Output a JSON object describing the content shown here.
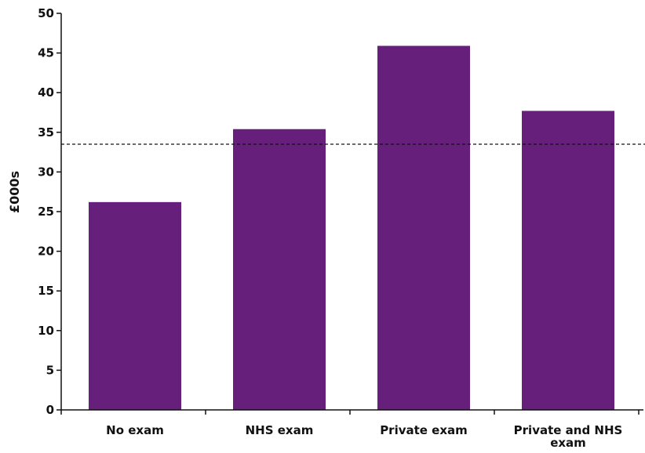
{
  "chart_data": {
    "type": "bar",
    "categories": [
      [
        "No exam"
      ],
      [
        "NHS exam"
      ],
      [
        "Private exam"
      ],
      [
        "Private and NHS",
        "exam"
      ]
    ],
    "values": [
      26.2,
      35.4,
      45.9,
      37.7
    ],
    "ylabel": "£000s",
    "xlabel": "",
    "ylim": [
      0,
      50
    ],
    "yticks": [
      0,
      5,
      10,
      15,
      20,
      25,
      30,
      35,
      40,
      45,
      50
    ],
    "reference_line": 33.5,
    "grid": false,
    "colors": {
      "bar": "#66207c",
      "axis": "#111111",
      "reference_line": "#111111"
    }
  }
}
